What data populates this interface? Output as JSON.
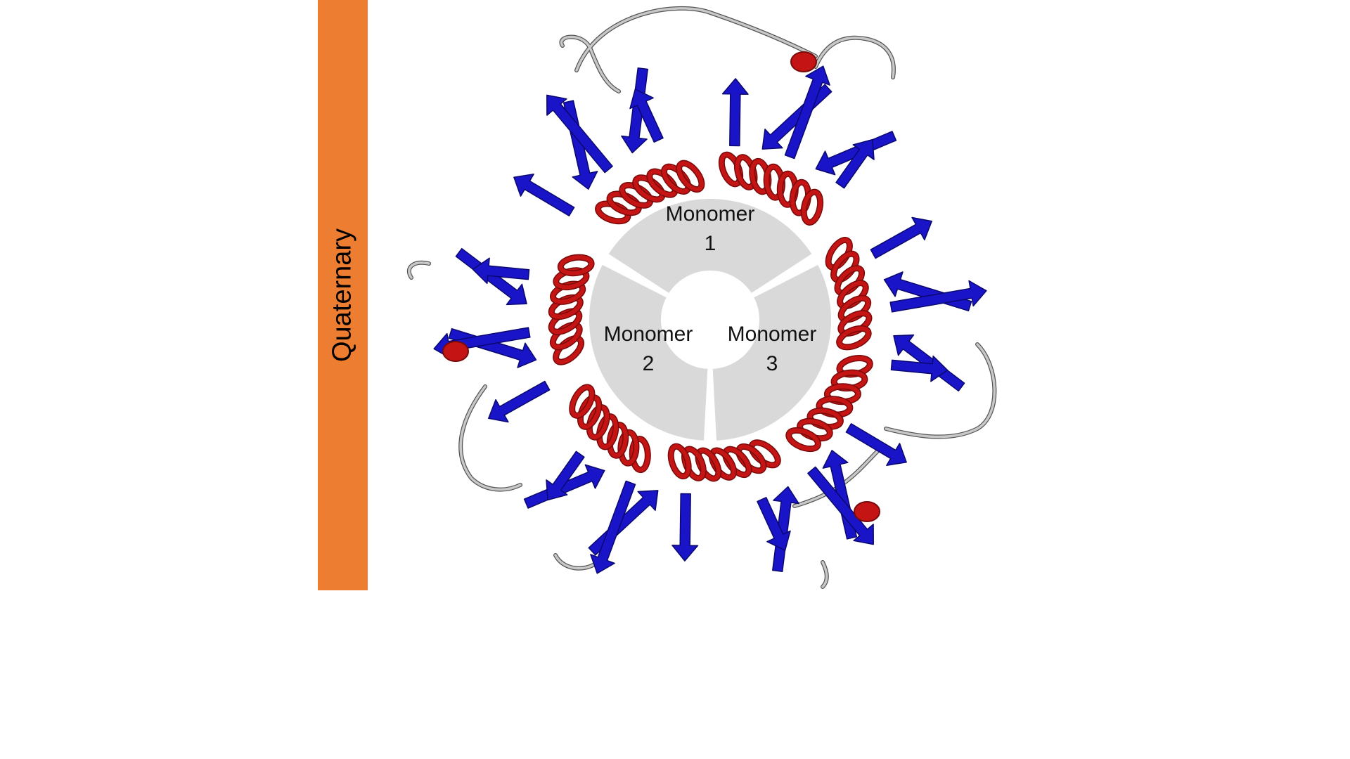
{
  "sidebar": {
    "label": "Quaternary",
    "color": "#ED7D31"
  },
  "figure": {
    "colors": {
      "helix": "#C41414",
      "helix_dark": "#7A0A0A",
      "sheet": "#1A14C8",
      "sheet_dark": "#0A0870",
      "loop": "#C8C8C8",
      "loop_outline": "#555555",
      "segment_fill": "#D9D9D9"
    },
    "segments": [
      {
        "line1": "Monomer",
        "line2": "1"
      },
      {
        "line1": "Monomer",
        "line2": "2"
      },
      {
        "line1": "Monomer",
        "line2": "3"
      }
    ]
  }
}
